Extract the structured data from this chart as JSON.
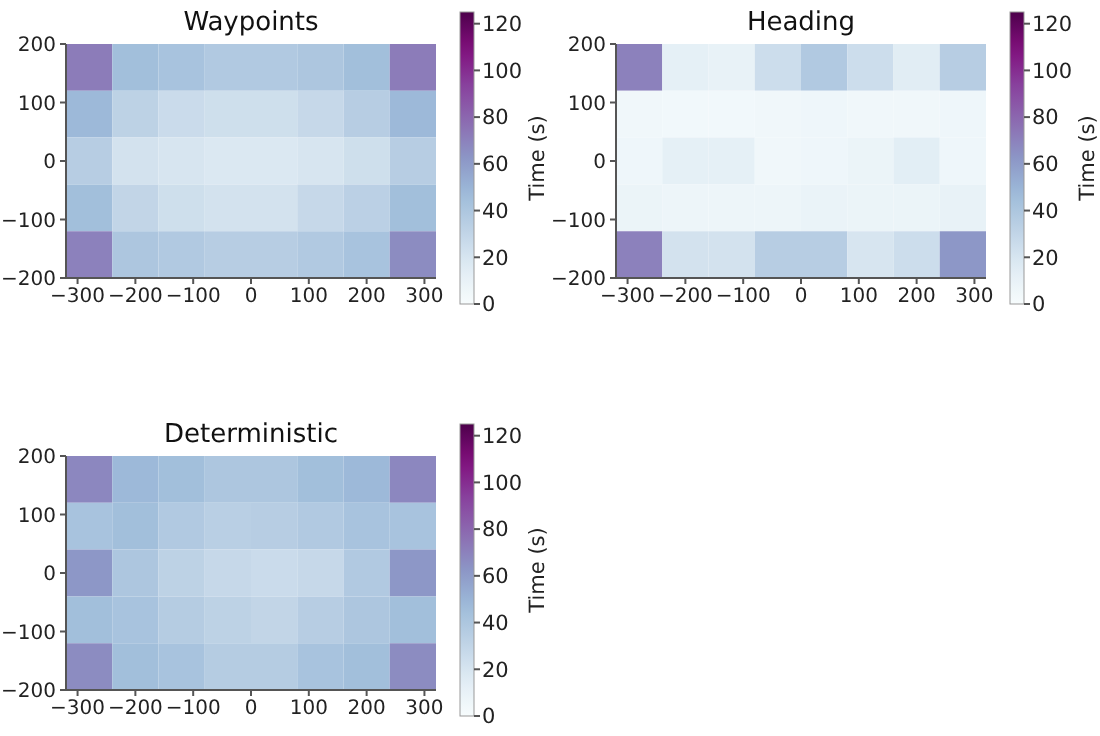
{
  "chart_data": [
    {
      "type": "heatmap",
      "title": "Waypoints",
      "clabel": "Time (s)",
      "xlim": [
        -320,
        320
      ],
      "xticks": [
        -300,
        -200,
        -100,
        0,
        100,
        200,
        300
      ],
      "ylim": [
        -200,
        200
      ],
      "yticks": [
        -200,
        -100,
        0,
        100,
        200
      ],
      "clim": [
        0,
        125
      ],
      "cticks": [
        0,
        20,
        40,
        60,
        80,
        100,
        120
      ],
      "cells": [
        [
          72,
          45,
          42,
          38,
          38,
          40,
          45,
          72
        ],
        [
          48,
          32,
          26,
          24,
          24,
          28,
          35,
          48
        ],
        [
          35,
          22,
          20,
          18,
          18,
          20,
          24,
          35
        ],
        [
          45,
          30,
          24,
          22,
          22,
          28,
          33,
          45
        ],
        [
          70,
          40,
          38,
          35,
          35,
          38,
          42,
          66
        ]
      ]
    },
    {
      "type": "heatmap",
      "title": "Heading",
      "clabel": "Time (s)",
      "xlim": [
        -320,
        320
      ],
      "xticks": [
        -300,
        -200,
        -100,
        0,
        100,
        200,
        300
      ],
      "ylim": [
        -200,
        200
      ],
      "yticks": [
        -200,
        -100,
        0,
        100,
        200
      ],
      "clim": [
        0,
        125
      ],
      "cticks": [
        0,
        20,
        40,
        60,
        80,
        100,
        120
      ],
      "cells": [
        [
          70,
          12,
          10,
          25,
          38,
          25,
          15,
          35
        ],
        [
          5,
          4,
          4,
          5,
          6,
          5,
          5,
          6
        ],
        [
          6,
          12,
          12,
          5,
          6,
          8,
          14,
          6
        ],
        [
          8,
          7,
          7,
          7,
          9,
          8,
          8,
          10
        ],
        [
          70,
          22,
          22,
          35,
          35,
          20,
          25,
          62
        ]
      ]
    },
    {
      "type": "heatmap",
      "title": "Deterministic",
      "clabel": "Time (s)",
      "xlim": [
        -320,
        320
      ],
      "xticks": [
        -300,
        -200,
        -100,
        0,
        100,
        200,
        300
      ],
      "ylim": [
        -200,
        200
      ],
      "yticks": [
        -200,
        -100,
        0,
        100,
        200
      ],
      "clim": [
        0,
        125
      ],
      "cticks": [
        0,
        20,
        40,
        60,
        80,
        100,
        120
      ],
      "cells": [
        [
          68,
          48,
          45,
          40,
          40,
          45,
          48,
          68
        ],
        [
          42,
          45,
          38,
          34,
          35,
          38,
          42,
          42
        ],
        [
          62,
          40,
          32,
          28,
          26,
          28,
          38,
          62
        ],
        [
          45,
          42,
          36,
          32,
          30,
          35,
          40,
          45
        ],
        [
          66,
          45,
          42,
          36,
          36,
          42,
          45,
          66
        ]
      ]
    }
  ]
}
